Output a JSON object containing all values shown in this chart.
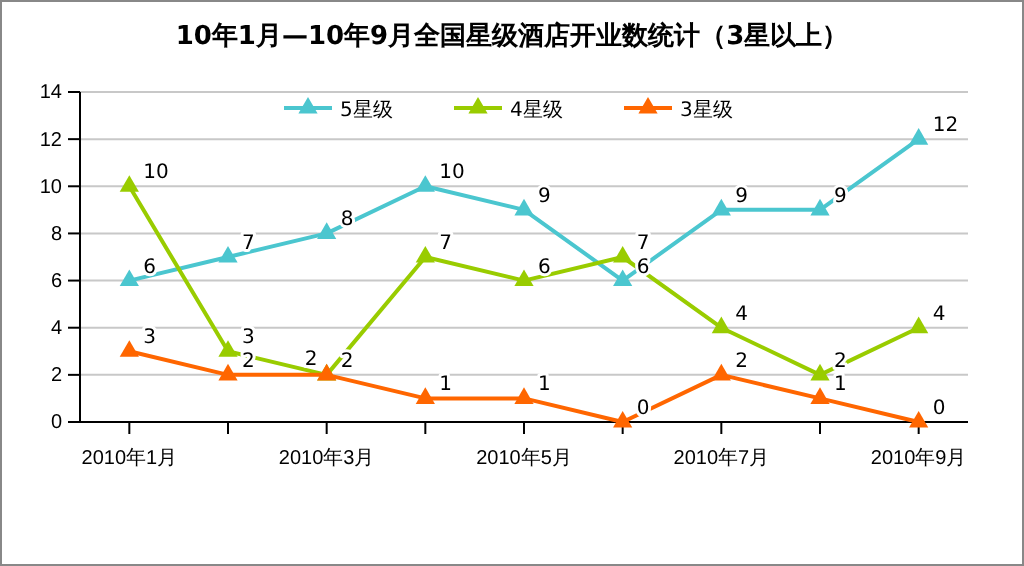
{
  "chart_data": {
    "type": "line",
    "title": "10年1月—10年9月全国星级酒店开业数统计（3星以上）",
    "categories": [
      "2010年1月",
      null,
      "2010年3月",
      null,
      "2010年5月",
      null,
      "2010年7月",
      null,
      "2010年9月"
    ],
    "series": [
      {
        "name": "5星级",
        "color": "#4bc6cf",
        "values": [
          6,
          7,
          8,
          10,
          9,
          6,
          9,
          9,
          12
        ]
      },
      {
        "name": "4星级",
        "color": "#99cc00",
        "values": [
          10,
          3,
          2,
          7,
          6,
          7,
          4,
          2,
          4
        ]
      },
      {
        "name": "3星级",
        "color": "#ff6600",
        "values": [
          3,
          2,
          2,
          1,
          1,
          0,
          2,
          1,
          0
        ]
      }
    ],
    "ylim": [
      0,
      14
    ],
    "yticks": [
      0,
      2,
      4,
      6,
      8,
      10,
      12,
      14
    ],
    "grid": "y",
    "legend": "top",
    "marker": "triangle",
    "data_labels": true
  }
}
